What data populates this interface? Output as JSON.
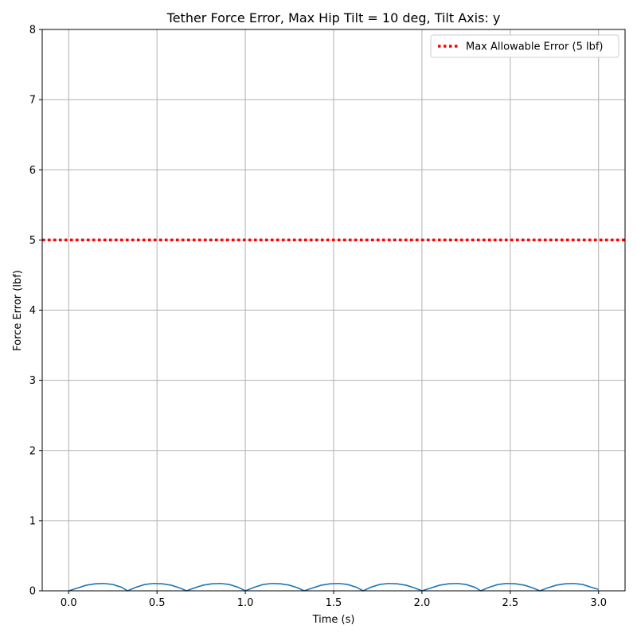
{
  "chart_data": {
    "type": "line",
    "title": "Tether Force Error, Max Hip Tilt = 10 deg, Tilt Axis: y",
    "xlabel": "Time (s)",
    "ylabel": "Force Error (lbf)",
    "xlim": [
      -0.15,
      3.15
    ],
    "ylim": [
      0,
      8
    ],
    "xticks": [
      0.0,
      0.5,
      1.0,
      1.5,
      2.0,
      2.5,
      3.0
    ],
    "xtick_labels": [
      "0.0",
      "0.5",
      "1.0",
      "1.5",
      "2.0",
      "2.5",
      "3.0"
    ],
    "yticks": [
      0,
      1,
      2,
      3,
      4,
      5,
      6,
      7,
      8
    ],
    "ytick_labels": [
      "0",
      "1",
      "2",
      "3",
      "4",
      "5",
      "6",
      "7",
      "8"
    ],
    "grid": true,
    "legend_position": "top-right",
    "series": [
      {
        "name": "",
        "color": "#1f77b4",
        "style": "solid",
        "x": [
          0.0,
          0.05,
          0.1,
          0.15,
          0.2,
          0.25,
          0.3,
          0.333,
          0.38,
          0.43,
          0.48,
          0.53,
          0.58,
          0.63,
          0.667,
          0.71,
          0.76,
          0.81,
          0.86,
          0.91,
          0.96,
          1.0,
          1.05,
          1.1,
          1.15,
          1.2,
          1.25,
          1.3,
          1.333,
          1.38,
          1.43,
          1.48,
          1.53,
          1.58,
          1.63,
          1.667,
          1.71,
          1.76,
          1.81,
          1.86,
          1.91,
          1.96,
          2.0,
          2.05,
          2.1,
          2.15,
          2.2,
          2.25,
          2.3,
          2.333,
          2.38,
          2.43,
          2.48,
          2.53,
          2.58,
          2.63,
          2.667,
          2.71,
          2.76,
          2.81,
          2.86,
          2.91,
          2.96,
          3.0
        ],
        "y": [
          0.0,
          0.04,
          0.08,
          0.1,
          0.105,
          0.09,
          0.05,
          0.0,
          0.05,
          0.09,
          0.105,
          0.1,
          0.08,
          0.04,
          0.0,
          0.04,
          0.08,
          0.1,
          0.105,
          0.09,
          0.05,
          0.0,
          0.05,
          0.09,
          0.105,
          0.1,
          0.08,
          0.04,
          0.0,
          0.04,
          0.08,
          0.1,
          0.105,
          0.09,
          0.05,
          0.0,
          0.05,
          0.09,
          0.105,
          0.1,
          0.08,
          0.04,
          0.0,
          0.04,
          0.08,
          0.1,
          0.105,
          0.09,
          0.05,
          0.0,
          0.05,
          0.09,
          0.105,
          0.1,
          0.08,
          0.04,
          0.0,
          0.04,
          0.08,
          0.1,
          0.105,
          0.09,
          0.05,
          0.02
        ]
      },
      {
        "name": "Max Allowable Error (5 lbf)",
        "color": "#ff0000",
        "style": "dotted",
        "x": [
          -0.15,
          3.15
        ],
        "y": [
          5,
          5
        ]
      }
    ]
  }
}
